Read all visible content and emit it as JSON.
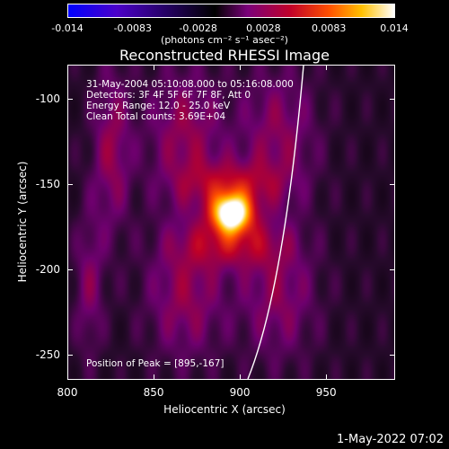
{
  "colorbar": {
    "ticks": [
      "-0.014",
      "-0.0083",
      "-0.0028",
      "0.0028",
      "0.0083",
      "0.014"
    ],
    "unit_label": "(photons cm⁻² s⁻¹ asec⁻²)"
  },
  "chart_data": {
    "type": "heatmap",
    "title": "Reconstructed RHESSI Image",
    "xlabel": "Heliocentric X (arcsec)",
    "ylabel": "Heliocentric Y (arcsec)",
    "xlim": [
      800,
      990
    ],
    "ylim": [
      -265,
      -80
    ],
    "xticks": [
      "800",
      "850",
      "900",
      "950"
    ],
    "yticks": [
      "-100",
      "-150",
      "-200",
      "-250"
    ],
    "clim": [
      -0.014,
      0.014
    ],
    "annotations": [
      "31-May-2004 05:10:08.000 to 05:16:08.000",
      "Detectors: 3F 4F 5F 6F 7F 8F, Att 0",
      "Energy Range: 12.0 - 25.0 keV",
      "Clean     Total counts: 3.69E+04"
    ],
    "peak_label": "Position of Peak = [895,-167]",
    "peak": {
      "x": 895,
      "y": -167
    },
    "sources": [
      {
        "x": 895,
        "y": -167,
        "sx": 8,
        "sy": 8,
        "amp": 0.014
      },
      {
        "x": 895,
        "y": -150,
        "sx": 20,
        "sy": 10,
        "amp": 0.004
      },
      {
        "x": 895,
        "y": -185,
        "sx": 20,
        "sy": 10,
        "amp": 0.004
      },
      {
        "x": 868,
        "y": -120,
        "sx": 16,
        "sy": 28,
        "amp": 0.0035
      },
      {
        "x": 868,
        "y": -215,
        "sx": 16,
        "sy": 28,
        "amp": 0.0035
      },
      {
        "x": 922,
        "y": -120,
        "sx": 16,
        "sy": 28,
        "amp": 0.0032
      },
      {
        "x": 922,
        "y": -215,
        "sx": 16,
        "sy": 28,
        "amp": 0.0032
      },
      {
        "x": 825,
        "y": -130,
        "sx": 8,
        "sy": 35,
        "amp": 0.0035
      },
      {
        "x": 812,
        "y": -210,
        "sx": 6,
        "sy": 30,
        "amp": 0.0028
      }
    ]
  },
  "timestamp": "1-May-2022 07:02"
}
